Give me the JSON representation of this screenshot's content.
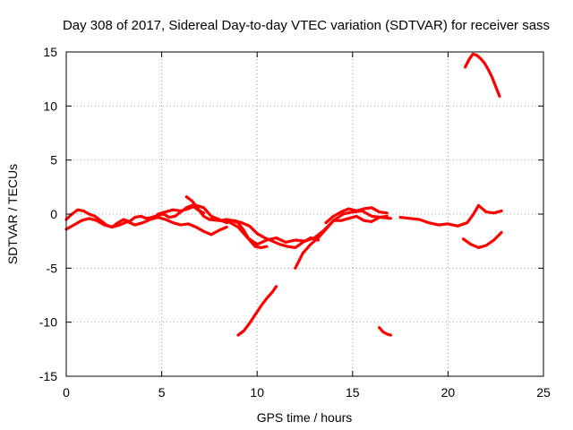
{
  "chart_data": {
    "type": "line",
    "title": "Day 308 of 2017, Sidereal Day-to-day VTEC variation (SDTVAR) for receiver sass",
    "xlabel": "GPS time / hours",
    "ylabel": "SDTVAR / TECUs",
    "xlim": [
      0,
      25
    ],
    "ylim": [
      -15,
      15
    ],
    "xticks": [
      0,
      5,
      10,
      15,
      20,
      25
    ],
    "yticks": [
      -15,
      -10,
      -5,
      0,
      5,
      10,
      15
    ],
    "grid": true,
    "color": "#ff0000",
    "series": [
      {
        "name": "s1",
        "x": [
          0.0,
          0.3,
          0.6,
          0.9,
          1.2,
          1.5,
          1.8,
          2.1,
          2.4,
          2.7,
          3.0,
          3.3,
          3.6,
          3.9,
          4.2,
          4.5,
          4.8,
          5.1,
          5.4,
          5.7,
          6.0,
          6.3,
          6.6,
          6.9,
          7.2
        ],
        "y": [
          -0.5,
          0.0,
          0.4,
          0.3,
          0.0,
          -0.2,
          -0.6,
          -1.0,
          -1.2,
          -0.8,
          -0.5,
          -0.7,
          -0.3,
          -0.2,
          -0.4,
          -0.3,
          -0.1,
          0.0,
          -0.3,
          -0.2,
          0.2,
          0.6,
          0.8,
          0.4,
          0.1
        ]
      },
      {
        "name": "s2",
        "x": [
          0.0,
          0.4,
          0.8,
          1.2,
          1.6,
          2.0,
          2.4,
          2.8,
          3.2,
          3.6,
          4.0,
          4.4,
          4.8,
          5.2,
          5.6,
          6.0,
          6.4,
          6.8,
          7.2,
          7.6,
          8.0,
          8.4
        ],
        "y": [
          -1.4,
          -1.0,
          -0.6,
          -0.4,
          -0.6,
          -1.0,
          -1.2,
          -1.0,
          -0.7,
          -1.0,
          -0.8,
          -0.5,
          -0.3,
          -0.5,
          -0.8,
          -1.0,
          -0.9,
          -1.2,
          -1.6,
          -1.9,
          -1.5,
          -1.2
        ]
      },
      {
        "name": "s3",
        "x": [
          4.8,
          5.2,
          5.6,
          6.0,
          6.4,
          6.8,
          7.2,
          7.6,
          8.0,
          8.4,
          8.8,
          9.2,
          9.6,
          10.0,
          10.4,
          10.8,
          11.2,
          11.6,
          12.0,
          12.4,
          12.8,
          13.2
        ],
        "y": [
          0.0,
          0.2,
          0.4,
          0.3,
          0.5,
          0.8,
          0.6,
          -0.2,
          -0.5,
          -0.8,
          -0.6,
          -0.8,
          -1.1,
          -1.8,
          -2.2,
          -2.5,
          -2.8,
          -3.0,
          -3.1,
          -2.6,
          -2.2,
          -2.4
        ]
      },
      {
        "name": "s4",
        "x": [
          6.3,
          6.6,
          6.9,
          7.2,
          7.5,
          7.8,
          8.1,
          8.4,
          8.7,
          9.0,
          9.3,
          9.6,
          9.9,
          10.2,
          10.5
        ],
        "y": [
          1.6,
          1.2,
          0.5,
          -0.2,
          -0.5,
          -0.4,
          -0.6,
          -0.5,
          -0.6,
          -0.8,
          -1.5,
          -2.4,
          -3.0,
          -3.1,
          -3.0
        ]
      },
      {
        "name": "s5",
        "x": [
          7.5,
          8.0,
          8.5,
          9.0,
          9.5,
          10.0,
          10.5,
          11.0,
          11.5,
          12.0,
          12.5,
          13.0,
          13.5,
          14.0,
          14.5,
          15.0,
          15.5,
          16.0,
          16.5,
          17.0
        ],
        "y": [
          -0.5,
          -0.6,
          -0.7,
          -1.2,
          -2.2,
          -2.8,
          -2.4,
          -2.2,
          -2.6,
          -2.4,
          -2.5,
          -2.2,
          -1.5,
          -0.6,
          0.0,
          0.2,
          0.3,
          -0.2,
          -0.3,
          -0.4
        ]
      },
      {
        "name": "s6",
        "x": [
          12.0,
          12.4,
          12.8,
          13.2,
          13.6,
          14.0,
          14.4,
          14.8,
          15.2,
          15.6,
          16.0,
          16.4,
          16.8
        ],
        "y": [
          -5.0,
          -3.6,
          -2.8,
          -2.2,
          -1.4,
          -0.6,
          -0.6,
          -0.4,
          -0.2,
          -0.6,
          -0.7,
          -0.3,
          -0.2
        ]
      },
      {
        "name": "s7",
        "x": [
          13.6,
          14.0,
          14.4,
          14.8,
          15.2,
          15.6,
          16.0,
          16.4,
          16.8
        ],
        "y": [
          -0.8,
          -0.2,
          0.2,
          0.5,
          0.3,
          0.5,
          0.6,
          0.2,
          0.1
        ]
      },
      {
        "name": "s8",
        "x": [
          17.5,
          18.0,
          18.5,
          19.0,
          19.5,
          20.0,
          20.5,
          21.0,
          21.3,
          21.6,
          22.0,
          22.4,
          22.8
        ],
        "y": [
          -0.3,
          -0.4,
          -0.5,
          -0.8,
          -1.0,
          -0.9,
          -1.1,
          -0.8,
          -0.1,
          0.8,
          0.2,
          0.1,
          0.3
        ]
      },
      {
        "name": "s9",
        "x": [
          20.8,
          21.2,
          21.6,
          22.0,
          22.4,
          22.8
        ],
        "y": [
          -2.3,
          -2.8,
          -3.1,
          -2.9,
          -2.4,
          -1.7
        ]
      },
      {
        "name": "s10",
        "x": [
          20.9,
          21.1,
          21.3,
          21.5,
          21.7,
          21.9,
          22.1,
          22.3,
          22.5,
          22.7
        ],
        "y": [
          13.6,
          14.3,
          14.8,
          14.7,
          14.4,
          14.0,
          13.4,
          12.7,
          11.8,
          10.9
        ]
      },
      {
        "name": "s11",
        "x": [
          9.0,
          9.3,
          9.6,
          9.9,
          10.2,
          10.5,
          10.8,
          11.0
        ],
        "y": [
          -11.2,
          -10.8,
          -10.1,
          -9.3,
          -8.5,
          -7.8,
          -7.2,
          -6.7
        ]
      },
      {
        "name": "s12",
        "x": [
          16.4,
          16.6,
          16.8,
          17.0
        ],
        "y": [
          -10.5,
          -10.9,
          -11.1,
          -11.2
        ]
      }
    ]
  }
}
